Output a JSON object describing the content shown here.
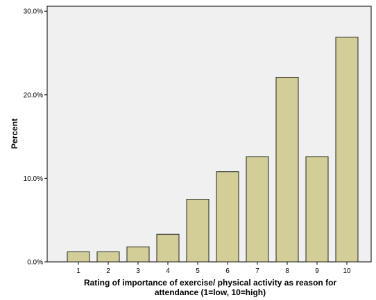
{
  "chart_data": {
    "type": "bar",
    "title": "",
    "xlabel_lines": [
      "Rating of importance of exercise/ physical activity as reason for",
      "attendance (1=low, 10=high)"
    ],
    "ylabel": "Percent",
    "categories": [
      "1",
      "2",
      "3",
      "4",
      "5",
      "6",
      "7",
      "8",
      "9",
      "10"
    ],
    "values": [
      1.2,
      1.2,
      1.8,
      3.3,
      7.5,
      10.8,
      12.6,
      22.1,
      12.6,
      26.9
    ],
    "ylim": [
      0,
      30.6
    ],
    "yticks": [
      0,
      10,
      20,
      30
    ],
    "ytick_labels": [
      "0.0%",
      "10.0%",
      "20.0%",
      "30.0%"
    ],
    "plot_background": "#f0f0f0",
    "bar_fill": "#d3ce97",
    "bar_stroke": "#222222",
    "grid": false,
    "legend": "none"
  }
}
